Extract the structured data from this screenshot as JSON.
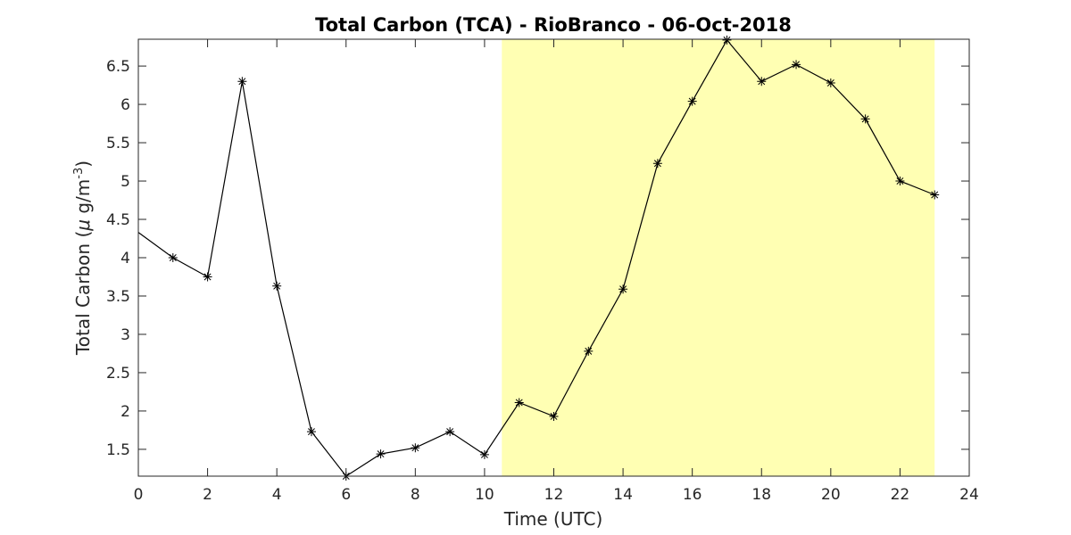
{
  "chart_data": {
    "type": "line",
    "title": "Total Carbon (TCA) - RioBranco - 06-Oct-2018",
    "xlabel": "Time (UTC)",
    "ylabel": {
      "prefix": "Total Carbon (",
      "mu": "μ",
      "unit": " g/m",
      "exponent": "-3",
      "suffix": ")"
    },
    "xlim": [
      0,
      24
    ],
    "ylim": [
      1.15,
      6.85
    ],
    "x_ticks": [
      0,
      2,
      4,
      6,
      8,
      10,
      12,
      14,
      16,
      18,
      20,
      22,
      24
    ],
    "y_ticks": [
      1.5,
      2,
      2.5,
      3,
      3.5,
      4,
      4.5,
      5,
      5.5,
      6,
      6.5
    ],
    "grid": false,
    "legend": "none",
    "highlight": {
      "x_start": 10.5,
      "x_end": 23,
      "color": "#ffffb3"
    },
    "series": [
      {
        "marker": "asterisk",
        "color": "#000000",
        "line_start_value": 4.33,
        "x": [
          1,
          2,
          3,
          4,
          5,
          6,
          7,
          8,
          9,
          10,
          11,
          12,
          13,
          14,
          15,
          16,
          17,
          18,
          19,
          20,
          21,
          22,
          23
        ],
        "y": [
          4.0,
          3.75,
          6.3,
          3.63,
          1.73,
          1.15,
          1.44,
          1.52,
          1.73,
          1.43,
          2.11,
          1.93,
          2.78,
          3.59,
          5.23,
          6.04,
          6.84,
          6.3,
          6.52,
          6.28,
          5.81,
          5.0,
          4.82
        ]
      }
    ]
  }
}
